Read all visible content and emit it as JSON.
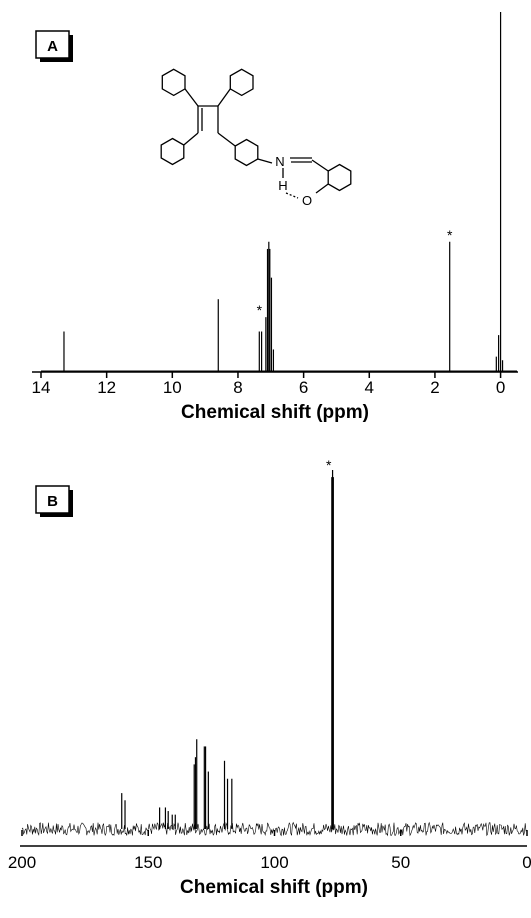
{
  "panels": [
    {
      "label": "A",
      "chart_data": {
        "type": "line",
        "title": "",
        "xlabel": "Chemical shift (ppm)",
        "ylabel": "",
        "xlim": [
          14,
          -0.5
        ],
        "x_reversed": true,
        "xticks": [
          14,
          12,
          10,
          8,
          6,
          4,
          2,
          0
        ],
        "grid": false,
        "legend": "none",
        "peaks": [
          {
            "x": 13.3,
            "y": 0.11
          },
          {
            "x": 8.6,
            "y": 0.2
          },
          {
            "x": 7.35,
            "y": 0.11
          },
          {
            "x": 7.28,
            "y": 0.11
          },
          {
            "x": 7.15,
            "y": 0.15
          },
          {
            "x": 7.1,
            "y": 0.34
          },
          {
            "x": 7.06,
            "y": 0.36
          },
          {
            "x": 7.03,
            "y": 0.34
          },
          {
            "x": 6.98,
            "y": 0.26
          },
          {
            "x": 6.92,
            "y": 0.06
          },
          {
            "x": 1.55,
            "y": 0.36
          },
          {
            "x": 0.13,
            "y": 0.04
          },
          {
            "x": 0.06,
            "y": 0.1
          },
          {
            "x": 0.0,
            "y": 1.0
          },
          {
            "x": -0.06,
            "y": 0.03
          }
        ],
        "annotations": [
          {
            "text": "*",
            "x": 7.35
          },
          {
            "text": "*",
            "x": 1.55
          }
        ]
      }
    },
    {
      "label": "B",
      "chart_data": {
        "type": "line",
        "title": "",
        "xlabel": "Chemical shift (ppm)",
        "ylabel": "",
        "xlim": [
          200,
          0
        ],
        "x_reversed": true,
        "xticks": [
          200,
          150,
          100,
          50,
          0
        ],
        "grid": false,
        "legend": "none",
        "noise_level": 0.018,
        "peaks": [
          {
            "x": 160.5,
            "y": 0.1
          },
          {
            "x": 159.2,
            "y": 0.08
          },
          {
            "x": 145.5,
            "y": 0.06
          },
          {
            "x": 143.2,
            "y": 0.06
          },
          {
            "x": 142.1,
            "y": 0.05
          },
          {
            "x": 140.5,
            "y": 0.04
          },
          {
            "x": 139.3,
            "y": 0.04
          },
          {
            "x": 131.8,
            "y": 0.18
          },
          {
            "x": 131.3,
            "y": 0.2
          },
          {
            "x": 130.8,
            "y": 0.25
          },
          {
            "x": 127.8,
            "y": 0.23
          },
          {
            "x": 127.3,
            "y": 0.23
          },
          {
            "x": 126.2,
            "y": 0.16
          },
          {
            "x": 119.8,
            "y": 0.19
          },
          {
            "x": 118.6,
            "y": 0.14
          },
          {
            "x": 116.9,
            "y": 0.14
          },
          {
            "x": 77.3,
            "y": 0.98
          },
          {
            "x": 77.0,
            "y": 1.0
          },
          {
            "x": 76.7,
            "y": 0.98
          }
        ],
        "annotations": [
          {
            "text": "*",
            "x": 78.5
          }
        ]
      }
    }
  ],
  "structure": {
    "atom_labels": [
      "N",
      "H",
      "O"
    ]
  }
}
